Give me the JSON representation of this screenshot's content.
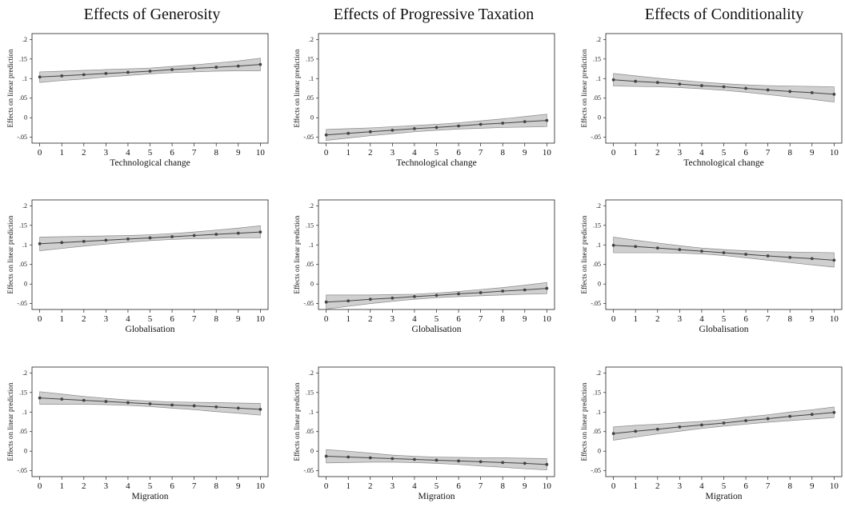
{
  "figure": {
    "column_titles": [
      "Effects of Generosity",
      "Effects of Progressive Taxation",
      "Effects of Conditionality"
    ]
  },
  "colors": {
    "band": "#cfcfcf",
    "band_edge": "#8a8a8a",
    "line": "#444444",
    "frame": "#222222"
  },
  "chart_data": [
    {
      "type": "line",
      "panel": "generosity-technological-change",
      "xlabel": "Technological change",
      "ylabel": "Effects on linear prediction",
      "x": [
        0,
        1,
        2,
        3,
        4,
        5,
        6,
        7,
        8,
        9,
        10
      ],
      "y": [
        0.104,
        0.107,
        0.11,
        0.113,
        0.116,
        0.119,
        0.123,
        0.126,
        0.129,
        0.132,
        0.136
      ],
      "ci_low": [
        0.09,
        0.095,
        0.099,
        0.104,
        0.108,
        0.112,
        0.115,
        0.117,
        0.119,
        0.12,
        0.12
      ],
      "ci_high": [
        0.117,
        0.119,
        0.121,
        0.123,
        0.125,
        0.127,
        0.131,
        0.135,
        0.14,
        0.145,
        0.152
      ],
      "ylim": [
        -0.065,
        0.215
      ],
      "xlim": [
        -0.35,
        10.35
      ],
      "yticks": [
        -0.05,
        0,
        0.05,
        0.1,
        0.15,
        0.2
      ],
      "ytick_labels": [
        "-.05",
        "0",
        ".05",
        ".1",
        ".15",
        ".2"
      ]
    },
    {
      "type": "line",
      "panel": "progressive-taxation-technological-change",
      "xlabel": "Technological change",
      "ylabel": "Effects on linear prediction",
      "x": [
        0,
        1,
        2,
        3,
        4,
        5,
        6,
        7,
        8,
        9,
        10
      ],
      "y": [
        -0.044,
        -0.04,
        -0.036,
        -0.032,
        -0.028,
        -0.025,
        -0.021,
        -0.017,
        -0.014,
        -0.01,
        -0.007
      ],
      "ci_low": [
        -0.058,
        -0.052,
        -0.046,
        -0.041,
        -0.036,
        -0.032,
        -0.029,
        -0.027,
        -0.025,
        -0.024,
        -0.023
      ],
      "ci_high": [
        -0.03,
        -0.028,
        -0.026,
        -0.023,
        -0.02,
        -0.017,
        -0.013,
        -0.008,
        -0.003,
        0.003,
        0.009
      ],
      "ylim": [
        -0.065,
        0.215
      ],
      "xlim": [
        -0.35,
        10.35
      ],
      "yticks": [
        -0.05,
        0,
        0.05,
        0.1,
        0.15,
        0.2
      ],
      "ytick_labels": [
        "-.05",
        "0",
        ".05",
        ".1",
        ".15",
        ".2"
      ]
    },
    {
      "type": "line",
      "panel": "conditionality-technological-change",
      "xlabel": "Technological change",
      "ylabel": "Effects on linear prediction",
      "x": [
        0,
        1,
        2,
        3,
        4,
        5,
        6,
        7,
        8,
        9,
        10
      ],
      "y": [
        0.097,
        0.093,
        0.09,
        0.086,
        0.082,
        0.079,
        0.075,
        0.071,
        0.067,
        0.064,
        0.06
      ],
      "ci_low": [
        0.081,
        0.08,
        0.079,
        0.077,
        0.074,
        0.07,
        0.065,
        0.059,
        0.053,
        0.047,
        0.04
      ],
      "ci_high": [
        0.113,
        0.107,
        0.101,
        0.096,
        0.091,
        0.087,
        0.084,
        0.082,
        0.081,
        0.08,
        0.079
      ],
      "ylim": [
        -0.065,
        0.215
      ],
      "xlim": [
        -0.35,
        10.35
      ],
      "yticks": [
        -0.05,
        0,
        0.05,
        0.1,
        0.15,
        0.2
      ],
      "ytick_labels": [
        "-.05",
        "0",
        ".05",
        ".1",
        ".15",
        ".2"
      ]
    },
    {
      "type": "line",
      "panel": "generosity-globalisation",
      "xlabel": "Globalisation",
      "ylabel": "Effects on linear prediction",
      "x": [
        0,
        1,
        2,
        3,
        4,
        5,
        6,
        7,
        8,
        9,
        10
      ],
      "y": [
        0.103,
        0.106,
        0.109,
        0.112,
        0.115,
        0.118,
        0.121,
        0.124,
        0.127,
        0.13,
        0.133
      ],
      "ci_low": [
        0.085,
        0.091,
        0.097,
        0.102,
        0.107,
        0.111,
        0.114,
        0.116,
        0.117,
        0.118,
        0.118
      ],
      "ci_high": [
        0.12,
        0.121,
        0.122,
        0.123,
        0.124,
        0.126,
        0.129,
        0.133,
        0.138,
        0.143,
        0.149
      ],
      "ylim": [
        -0.065,
        0.215
      ],
      "xlim": [
        -0.35,
        10.35
      ],
      "yticks": [
        -0.05,
        0,
        0.05,
        0.1,
        0.15,
        0.2
      ],
      "ytick_labels": [
        "-.05",
        "0",
        ".05",
        ".1",
        ".15",
        ".2"
      ]
    },
    {
      "type": "line",
      "panel": "progressive-taxation-globalisation",
      "xlabel": "Globalisation",
      "ylabel": "Effects on linear prediction",
      "x": [
        0,
        1,
        2,
        3,
        4,
        5,
        6,
        7,
        8,
        9,
        10
      ],
      "y": [
        -0.046,
        -0.043,
        -0.039,
        -0.036,
        -0.032,
        -0.029,
        -0.025,
        -0.022,
        -0.018,
        -0.015,
        -0.011
      ],
      "ci_low": [
        -0.064,
        -0.057,
        -0.05,
        -0.044,
        -0.039,
        -0.035,
        -0.032,
        -0.03,
        -0.028,
        -0.026,
        -0.025
      ],
      "ci_high": [
        -0.028,
        -0.028,
        -0.028,
        -0.027,
        -0.026,
        -0.023,
        -0.019,
        -0.014,
        -0.009,
        -0.003,
        0.004
      ],
      "ylim": [
        -0.065,
        0.215
      ],
      "xlim": [
        -0.35,
        10.35
      ],
      "yticks": [
        -0.05,
        0,
        0.05,
        0.1,
        0.15,
        0.2
      ],
      "ytick_labels": [
        "-.05",
        "0",
        ".05",
        ".1",
        ".15",
        ".2"
      ]
    },
    {
      "type": "line",
      "panel": "conditionality-globalisation",
      "xlabel": "Globalisation",
      "ylabel": "Effects on linear prediction",
      "x": [
        0,
        1,
        2,
        3,
        4,
        5,
        6,
        7,
        8,
        9,
        10
      ],
      "y": [
        0.099,
        0.096,
        0.092,
        0.088,
        0.084,
        0.08,
        0.076,
        0.072,
        0.068,
        0.065,
        0.061
      ],
      "ci_low": [
        0.08,
        0.08,
        0.08,
        0.079,
        0.077,
        0.073,
        0.067,
        0.061,
        0.055,
        0.049,
        0.043
      ],
      "ci_high": [
        0.12,
        0.112,
        0.105,
        0.098,
        0.092,
        0.088,
        0.085,
        0.083,
        0.082,
        0.081,
        0.08
      ],
      "ylim": [
        -0.065,
        0.215
      ],
      "xlim": [
        -0.35,
        10.35
      ],
      "yticks": [
        -0.05,
        0,
        0.05,
        0.1,
        0.15,
        0.2
      ],
      "ytick_labels": [
        "-.05",
        "0",
        ".05",
        ".1",
        ".15",
        ".2"
      ]
    },
    {
      "type": "line",
      "panel": "generosity-migration",
      "xlabel": "Migration",
      "ylabel": "Effects on linear prediction",
      "x": [
        0,
        1,
        2,
        3,
        4,
        5,
        6,
        7,
        8,
        9,
        10
      ],
      "y": [
        0.136,
        0.133,
        0.13,
        0.127,
        0.124,
        0.121,
        0.118,
        0.116,
        0.113,
        0.11,
        0.107
      ],
      "ci_low": [
        0.12,
        0.12,
        0.12,
        0.119,
        0.117,
        0.114,
        0.11,
        0.106,
        0.101,
        0.097,
        0.092
      ],
      "ci_high": [
        0.152,
        0.146,
        0.14,
        0.135,
        0.131,
        0.128,
        0.126,
        0.125,
        0.124,
        0.123,
        0.122
      ],
      "ylim": [
        -0.065,
        0.215
      ],
      "xlim": [
        -0.35,
        10.35
      ],
      "yticks": [
        -0.05,
        0,
        0.05,
        0.1,
        0.15,
        0.2
      ],
      "ytick_labels": [
        "-.05",
        "0",
        ".05",
        ".1",
        ".15",
        ".2"
      ]
    },
    {
      "type": "line",
      "panel": "progressive-taxation-migration",
      "xlabel": "Migration",
      "ylabel": "Effects on linear prediction",
      "x": [
        0,
        1,
        2,
        3,
        4,
        5,
        6,
        7,
        8,
        9,
        10
      ],
      "y": [
        -0.013,
        -0.015,
        -0.017,
        -0.019,
        -0.021,
        -0.023,
        -0.025,
        -0.027,
        -0.029,
        -0.031,
        -0.034
      ],
      "ci_low": [
        -0.03,
        -0.029,
        -0.028,
        -0.028,
        -0.029,
        -0.031,
        -0.034,
        -0.038,
        -0.041,
        -0.045,
        -0.048
      ],
      "ci_high": [
        0.004,
        0.0,
        -0.005,
        -0.01,
        -0.013,
        -0.015,
        -0.016,
        -0.017,
        -0.017,
        -0.018,
        -0.019
      ],
      "ylim": [
        -0.065,
        0.215
      ],
      "xlim": [
        -0.35,
        10.35
      ],
      "yticks": [
        -0.05,
        0,
        0.05,
        0.1,
        0.15,
        0.2
      ],
      "ytick_labels": [
        "-.05",
        "0",
        ".05",
        ".1",
        ".15",
        ".2"
      ]
    },
    {
      "type": "line",
      "panel": "conditionality-migration",
      "xlabel": "Migration",
      "ylabel": "Effects on linear prediction",
      "x": [
        0,
        1,
        2,
        3,
        4,
        5,
        6,
        7,
        8,
        9,
        10
      ],
      "y": [
        0.045,
        0.051,
        0.056,
        0.062,
        0.067,
        0.072,
        0.078,
        0.083,
        0.089,
        0.094,
        0.099
      ],
      "ci_low": [
        0.028,
        0.036,
        0.044,
        0.051,
        0.058,
        0.064,
        0.069,
        0.074,
        0.078,
        0.082,
        0.086
      ],
      "ci_high": [
        0.062,
        0.066,
        0.069,
        0.073,
        0.076,
        0.081,
        0.087,
        0.093,
        0.1,
        0.106,
        0.113
      ],
      "ylim": [
        -0.065,
        0.215
      ],
      "xlim": [
        -0.35,
        10.35
      ],
      "yticks": [
        -0.05,
        0,
        0.05,
        0.1,
        0.15,
        0.2
      ],
      "ytick_labels": [
        "-.05",
        "0",
        ".05",
        ".1",
        ".15",
        ".2"
      ]
    }
  ]
}
